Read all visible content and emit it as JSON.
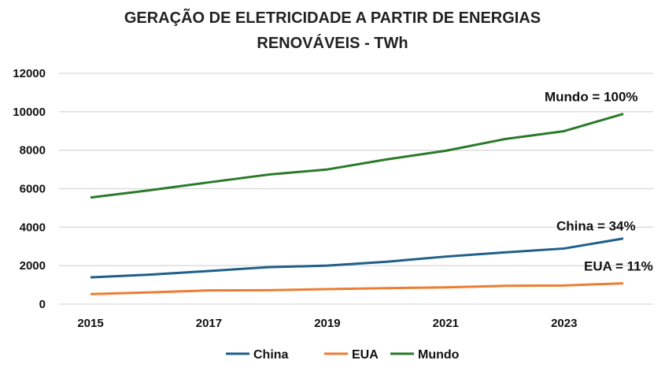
{
  "chart_data": {
    "type": "line",
    "title_lines": [
      "GERAÇÃO DE ELETRICIDADE A PARTIR DE ENERGIAS",
      "RENOVÁVEIS - TWh"
    ],
    "x": [
      2015,
      2016,
      2017,
      2018,
      2019,
      2020,
      2021,
      2022,
      2023,
      2024
    ],
    "x_tick_labels": [
      "2015",
      "2017",
      "2019",
      "2021",
      "2023"
    ],
    "y_tick_labels": [
      "0",
      "2000",
      "4000",
      "6000",
      "8000",
      "10000",
      "12000"
    ],
    "ylim": [
      0,
      12000
    ],
    "grid": true,
    "legend_position": "bottom",
    "series": [
      {
        "name": "China",
        "color": "#1f5f8b",
        "values": [
          1390,
          1530,
          1720,
          1920,
          2000,
          2200,
          2470,
          2690,
          2890,
          3410
        ],
        "annotation": "China = 34%"
      },
      {
        "name": "EUA",
        "color": "#ed7d31",
        "values": [
          520,
          610,
          710,
          720,
          780,
          830,
          870,
          950,
          970,
          1080
        ],
        "annotation": "EUA = 11%"
      },
      {
        "name": "Mundo",
        "color": "#2a7a2a",
        "values": [
          5540,
          5920,
          6330,
          6730,
          7000,
          7520,
          7970,
          8580,
          8990,
          9890
        ],
        "annotation": "Mundo = 100%"
      }
    ]
  }
}
